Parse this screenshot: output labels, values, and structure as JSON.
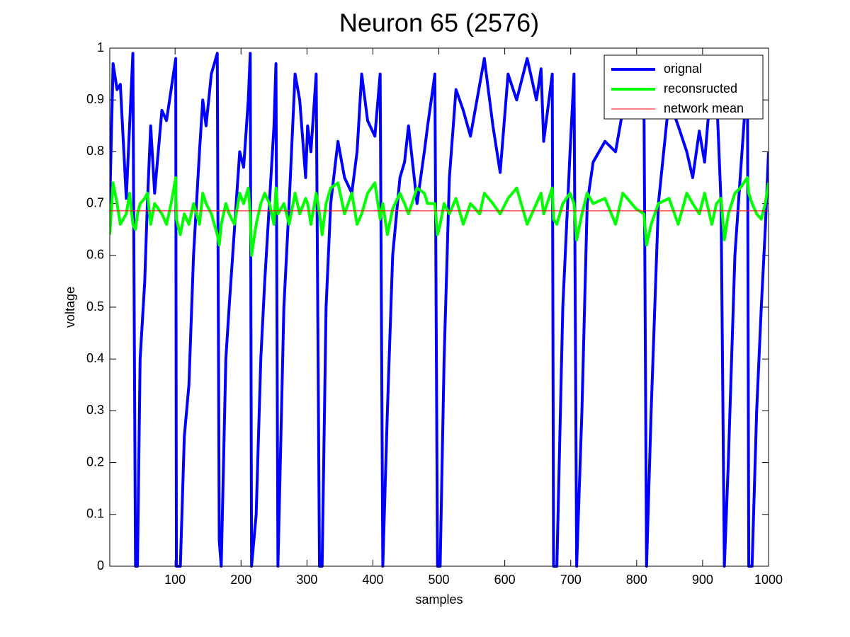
{
  "chart_data": {
    "type": "line",
    "title": "Neuron 65 (2576)",
    "xlabel": "samples",
    "ylabel": "voltage",
    "xlim": [
      1,
      1000
    ],
    "ylim": [
      0,
      1
    ],
    "xticks": [
      100,
      200,
      300,
      400,
      500,
      600,
      700,
      800,
      900,
      1000
    ],
    "yticks": [
      0,
      0.1,
      0.2,
      0.3,
      0.4,
      0.5,
      0.6,
      0.7,
      0.8,
      0.9,
      1
    ],
    "grid": false,
    "legend": "northeast",
    "x": [
      1,
      6,
      12,
      17,
      26,
      31,
      36,
      40,
      43,
      47,
      54,
      58,
      63,
      69,
      80,
      87,
      94,
      101,
      102,
      108,
      114,
      121,
      128,
      137,
      142,
      147,
      155,
      164,
      167,
      170,
      177,
      182,
      190,
      198,
      204,
      211,
      214,
      216,
      223,
      230,
      236,
      243,
      250,
      253,
      256,
      265,
      273,
      282,
      289,
      298,
      301,
      306,
      314,
      319,
      323,
      329,
      336,
      347,
      357,
      368,
      376,
      383,
      392,
      403,
      411,
      415,
      422,
      430,
      441,
      448,
      454,
      467,
      478,
      483,
      494,
      498,
      502,
      508,
      516,
      526,
      537,
      548,
      562,
      569,
      582,
      593,
      605,
      618,
      634,
      648,
      655,
      659,
      672,
      674,
      679,
      688,
      699,
      705,
      709,
      717,
      725,
      734,
      752,
      768,
      779,
      799,
      811,
      815,
      822,
      833,
      849,
      863,
      876,
      885,
      895,
      903,
      914,
      921,
      928,
      933,
      939,
      949,
      957,
      968,
      970,
      975,
      982,
      989,
      995,
      1000
    ],
    "series": [
      {
        "name": "orignal",
        "color": "#0000ff",
        "width": 4,
        "values": [
          0.7,
          0.97,
          0.92,
          0.93,
          0.71,
          0.85,
          0.99,
          0,
          0,
          0.4,
          0.55,
          0.7,
          0.85,
          0.72,
          0.88,
          0.86,
          0.92,
          0.98,
          0,
          0,
          0.25,
          0.35,
          0.6,
          0.8,
          0.9,
          0.85,
          0.95,
          0.99,
          0.05,
          0,
          0.4,
          0.5,
          0.65,
          0.8,
          0.77,
          0.9,
          0.99,
          0,
          0.1,
          0.4,
          0.55,
          0.7,
          0.85,
          0.97,
          0,
          0.5,
          0.7,
          0.95,
          0.9,
          0.75,
          0.85,
          0.8,
          0.95,
          0,
          0,
          0.5,
          0.7,
          0.82,
          0.75,
          0.72,
          0.8,
          0.95,
          0.86,
          0.83,
          0.95,
          0,
          0.3,
          0.6,
          0.75,
          0.78,
          0.85,
          0.7,
          0.8,
          0.85,
          0.95,
          0,
          0,
          0.4,
          0.75,
          0.92,
          0.88,
          0.83,
          0.93,
          0.98,
          0.85,
          0.76,
          0.95,
          0.9,
          0.98,
          0.9,
          0.96,
          0.82,
          0.95,
          0,
          0,
          0.5,
          0.8,
          0.95,
          0,
          0.3,
          0.7,
          0.78,
          0.82,
          0.8,
          0.88,
          0.9,
          0.92,
          0,
          0.3,
          0.7,
          0.9,
          0.85,
          0.8,
          0.75,
          0.84,
          0.78,
          0.95,
          0.92,
          0.7,
          0,
          0.2,
          0.6,
          0.75,
          0.95,
          0,
          0,
          0.3,
          0.5,
          0.65,
          0.8
        ]
      },
      {
        "name": "reconsructed",
        "color": "#00ff00",
        "width": 4,
        "values": [
          0.64,
          0.74,
          0.7,
          0.66,
          0.68,
          0.72,
          0.66,
          0.65,
          0.68,
          0.7,
          0.71,
          0.72,
          0.66,
          0.7,
          0.68,
          0.66,
          0.7,
          0.75,
          0.67,
          0.64,
          0.68,
          0.66,
          0.7,
          0.66,
          0.72,
          0.7,
          0.68,
          0.64,
          0.62,
          0.66,
          0.7,
          0.68,
          0.66,
          0.72,
          0.7,
          0.73,
          0.68,
          0.6,
          0.66,
          0.7,
          0.72,
          0.7,
          0.66,
          0.73,
          0.68,
          0.7,
          0.66,
          0.72,
          0.68,
          0.71,
          0.7,
          0.66,
          0.72,
          0.68,
          0.64,
          0.7,
          0.73,
          0.74,
          0.68,
          0.72,
          0.66,
          0.68,
          0.72,
          0.74,
          0.67,
          0.7,
          0.64,
          0.69,
          0.72,
          0.7,
          0.68,
          0.73,
          0.72,
          0.7,
          0.7,
          0.64,
          0.66,
          0.7,
          0.68,
          0.71,
          0.66,
          0.7,
          0.68,
          0.72,
          0.7,
          0.68,
          0.71,
          0.73,
          0.66,
          0.7,
          0.72,
          0.68,
          0.73,
          0.67,
          0.66,
          0.7,
          0.72,
          0.7,
          0.63,
          0.68,
          0.72,
          0.7,
          0.71,
          0.66,
          0.72,
          0.69,
          0.68,
          0.62,
          0.66,
          0.7,
          0.71,
          0.66,
          0.72,
          0.7,
          0.68,
          0.72,
          0.66,
          0.7,
          0.71,
          0.63,
          0.68,
          0.72,
          0.73,
          0.75,
          0.72,
          0.7,
          0.68,
          0.67,
          0.7,
          0.74
        ]
      },
      {
        "name": "network mean",
        "color": "#ff0000",
        "width": 1,
        "x": [
          1,
          1000
        ],
        "values": [
          0.686,
          0.686
        ]
      }
    ]
  }
}
